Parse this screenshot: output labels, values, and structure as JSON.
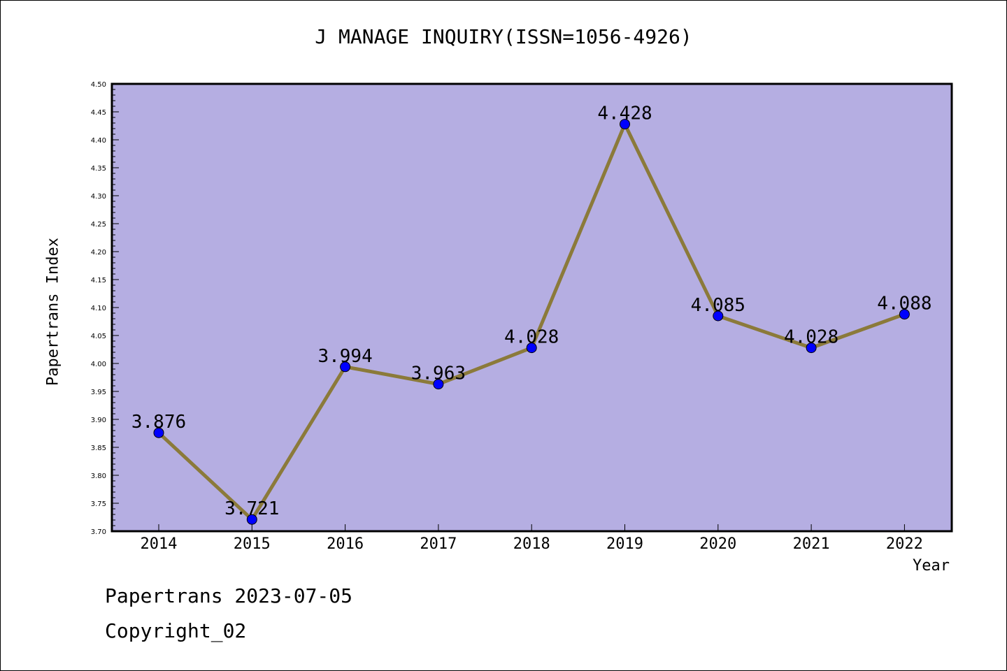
{
  "chart_data": {
    "type": "line",
    "title": "J MANAGE INQUIRY(ISSN=1056-4926)",
    "xlabel": "Year",
    "ylabel": "Papertrans Index",
    "categories": [
      "2014",
      "2015",
      "2016",
      "2017",
      "2018",
      "2019",
      "2020",
      "2021",
      "2022"
    ],
    "values": [
      3.876,
      3.721,
      3.994,
      3.963,
      4.028,
      4.428,
      4.085,
      4.028,
      4.088
    ],
    "data_labels": [
      "3.876",
      "3.721",
      "3.994",
      "3.963",
      "4.028",
      "4.428",
      "4.085",
      "4.028",
      "4.088"
    ],
    "ylim": [
      3.7,
      4.5
    ],
    "yticks": [
      "3.70",
      "3.75",
      "3.80",
      "3.85",
      "3.90",
      "3.95",
      "4.00",
      "4.05",
      "4.10",
      "4.15",
      "4.20",
      "4.25",
      "4.30",
      "4.35",
      "4.40",
      "4.45",
      "4.50"
    ],
    "grid": false,
    "legend": "none",
    "colors": {
      "plot_background": "#b5aee2",
      "line": "#8b7a3a",
      "marker": "#0000ff"
    }
  },
  "footer": {
    "date_text": "Papertrans 2023-07-05",
    "copyright_text": "Copyright_02"
  }
}
